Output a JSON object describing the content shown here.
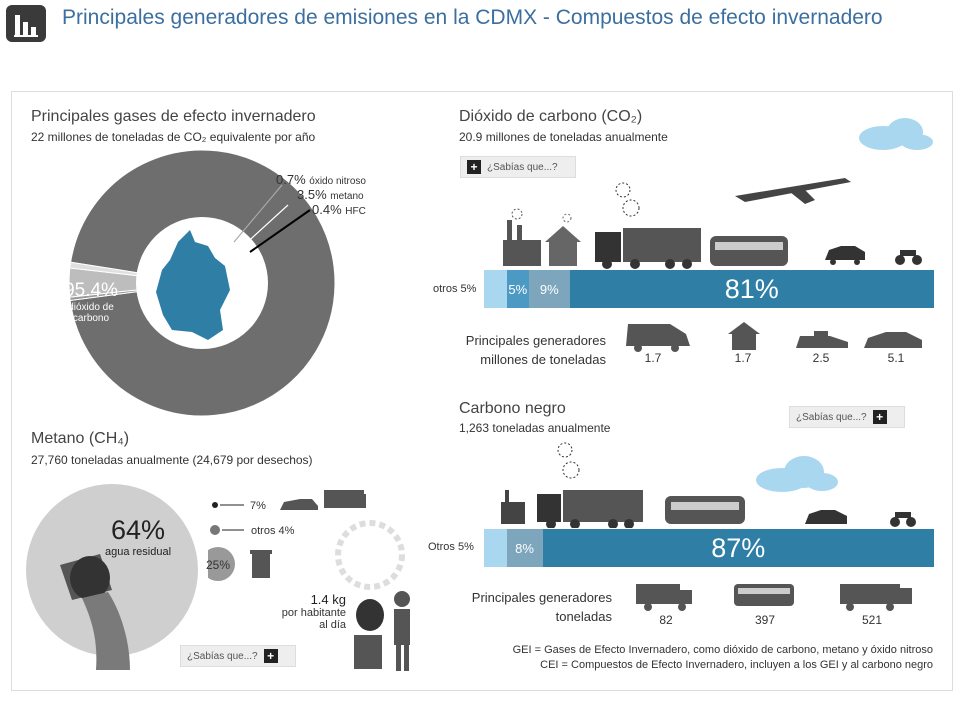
{
  "header": {
    "title": "Principales generadores de emisiones en la CDMX - Compuestos de efecto invernadero"
  },
  "gases": {
    "title": "Principales gases de efecto invernadero",
    "subtitle": "22 millones de toneladas de CO₂ equivalente por año",
    "labels": {
      "main_value": "95.4%",
      "main_name": "dióxido de carbono",
      "n2o_value": "0.7%",
      "n2o_name": "óxido nitroso",
      "ch4_value": "3.5%",
      "ch4_name": "metano",
      "hfc_value": "0.4%",
      "hfc_name": "HFC"
    }
  },
  "co2": {
    "title": "Dióxido de carbono (CO₂)",
    "subtitle": "20.9 millones de toneladas anualmente",
    "button": "¿Sabías que...?",
    "otros_label": "otros 5%",
    "segments": [
      "5%",
      "9%",
      "81%"
    ],
    "generators_caption_1": "Principales generadores",
    "generators_caption_2": "millones de toneladas",
    "generator_values": [
      "1.7",
      "1.7",
      "2.5",
      "5.1"
    ]
  },
  "metano": {
    "title": "Metano (CH₄)",
    "subtitle": "27,760 toneladas anualmente (24,679 por desechos)",
    "main_value": "64%",
    "main_name": "agua residual",
    "small_1": "7%",
    "small_2": "otros 4%",
    "trash_value": "25%",
    "per_capita_value": "1.4 kg",
    "per_capita_text_1": "por habitante",
    "per_capita_text_2": "al día",
    "button": "¿Sabías que...?"
  },
  "carbono": {
    "title": "Carbono negro",
    "subtitle": "1,263 toneladas anualmente",
    "button": "¿Sabías que...?",
    "otros_label": "Otros 5%",
    "segments": [
      "8%",
      "87%"
    ],
    "generators_caption_1": "Principales generadores",
    "generators_caption_2": "toneladas",
    "generator_values": [
      "82",
      "397",
      "521"
    ]
  },
  "notes": {
    "line_1": "GEI = Gases de Efecto Invernadero, como dióxido de carbono, metano y óxido nitroso",
    "line_2": "CEI = Compuestos de Efecto Invernadero, incluyen a los GEI y al carbono negro"
  },
  "colors": {
    "title_blue": "#3b6fa0",
    "bar_blue": "#2e7ea6",
    "mid_blue": "#4c9ac4",
    "grey": "#6e6e6e",
    "light_grey": "#cfcfcf"
  },
  "chart_data": [
    {
      "type": "pie",
      "title": "Principales gases de efecto invernadero",
      "categories": [
        "dióxido de carbono",
        "metano",
        "óxido nitroso",
        "HFC"
      ],
      "values": [
        95.4,
        3.5,
        0.7,
        0.4
      ]
    },
    {
      "type": "bar",
      "title": "Dióxido de carbono (CO₂)",
      "categories": [
        "otros",
        "",
        "",
        ""
      ],
      "values": [
        5,
        5,
        9,
        81
      ]
    },
    {
      "type": "bar",
      "title": "Dióxido de carbono (CO₂) - Principales generadores",
      "ylabel": "millones de toneladas",
      "values": [
        1.7,
        1.7,
        2.5,
        5.1
      ]
    },
    {
      "type": "pie",
      "title": "Metano (CH₄)",
      "categories": [
        "agua residual",
        "",
        "otros",
        ""
      ],
      "values": [
        64,
        7,
        4,
        25
      ]
    },
    {
      "type": "bar",
      "title": "Carbono negro",
      "categories": [
        "Otros",
        "",
        ""
      ],
      "values": [
        5,
        8,
        87
      ]
    },
    {
      "type": "bar",
      "title": "Carbono negro - Principales generadores",
      "ylabel": "toneladas",
      "values": [
        82,
        397,
        521
      ]
    }
  ]
}
